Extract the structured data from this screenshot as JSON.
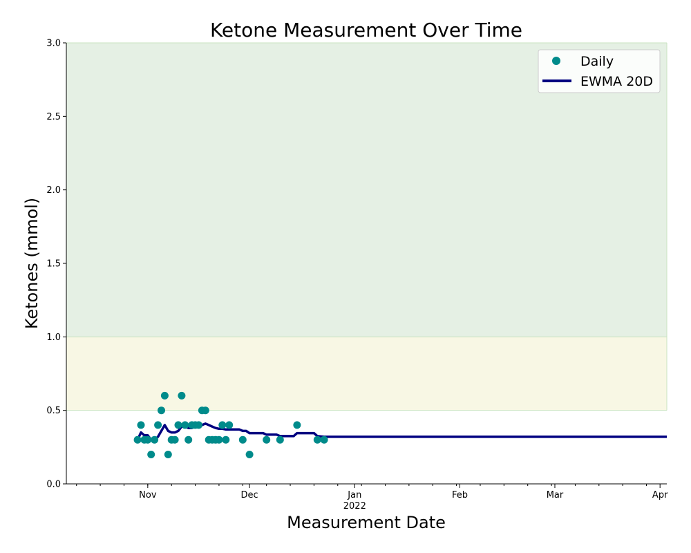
{
  "chart_data": {
    "type": "line",
    "title": "Ketone Measurement Over Time",
    "xlabel": "Measurement Date",
    "ylabel": "Ketones (mmol)",
    "ylim": [
      0.0,
      3.0
    ],
    "xlim": [
      "2021-10-08",
      "2022-04-03"
    ],
    "y_ticks": [
      "0.0",
      "0.5",
      "1.0",
      "1.5",
      "2.0",
      "2.5",
      "3.0"
    ],
    "x_ticks": [
      {
        "date": "2021-11-01",
        "label": "Nov",
        "sublabel": ""
      },
      {
        "date": "2021-12-01",
        "label": "Dec",
        "sublabel": ""
      },
      {
        "date": "2022-01-01",
        "label": "Jan",
        "sublabel": "2022"
      },
      {
        "date": "2022-02-01",
        "label": "Feb",
        "sublabel": ""
      },
      {
        "date": "2022-03-01",
        "label": "Mar",
        "sublabel": ""
      },
      {
        "date": "2022-04-01",
        "label": "Apr",
        "sublabel": ""
      }
    ],
    "bands": [
      {
        "from": 1.0,
        "to": 3.0,
        "color": "#e5f0e4"
      },
      {
        "from": 0.5,
        "to": 1.0,
        "color": "#f8f7e4"
      }
    ],
    "legend": {
      "placement": "top-right",
      "daily_label": "Daily",
      "ewma_label": "EWMA 20D"
    },
    "series": [
      {
        "name": "Daily",
        "kind": "scatter",
        "color": "#008b8b",
        "points": [
          [
            "2021-10-29",
            0.3
          ],
          [
            "2021-10-30",
            0.4
          ],
          [
            "2021-10-31",
            0.3
          ],
          [
            "2021-11-01",
            0.3
          ],
          [
            "2021-11-02",
            0.2
          ],
          [
            "2021-11-03",
            0.3
          ],
          [
            "2021-11-04",
            0.4
          ],
          [
            "2021-11-05",
            0.5
          ],
          [
            "2021-11-06",
            0.6
          ],
          [
            "2021-11-07",
            0.2
          ],
          [
            "2021-11-08",
            0.3
          ],
          [
            "2021-11-09",
            0.3
          ],
          [
            "2021-11-10",
            0.4
          ],
          [
            "2021-11-11",
            0.6
          ],
          [
            "2021-11-12",
            0.4
          ],
          [
            "2021-11-13",
            0.3
          ],
          [
            "2021-11-14",
            0.4
          ],
          [
            "2021-11-15",
            0.4
          ],
          [
            "2021-11-16",
            0.4
          ],
          [
            "2021-11-17",
            0.5
          ],
          [
            "2021-11-18",
            0.5
          ],
          [
            "2021-11-19",
            0.3
          ],
          [
            "2021-11-20",
            0.3
          ],
          [
            "2021-11-21",
            0.3
          ],
          [
            "2021-11-22",
            0.3
          ],
          [
            "2021-11-23",
            0.4
          ],
          [
            "2021-11-24",
            0.3
          ],
          [
            "2021-11-25",
            0.4
          ],
          [
            "2021-11-29",
            0.3
          ],
          [
            "2021-12-01",
            0.2
          ],
          [
            "2021-12-06",
            0.3
          ],
          [
            "2021-12-10",
            0.3
          ],
          [
            "2021-12-15",
            0.4
          ],
          [
            "2021-12-21",
            0.3
          ],
          [
            "2021-12-23",
            0.3
          ]
        ]
      },
      {
        "name": "EWMA 20D",
        "kind": "line",
        "color": "#000080",
        "points": [
          [
            "2021-10-29",
            0.3
          ],
          [
            "2021-10-30",
            0.35
          ],
          [
            "2021-10-31",
            0.33
          ],
          [
            "2021-11-01",
            0.33
          ],
          [
            "2021-11-02",
            0.3
          ],
          [
            "2021-11-03",
            0.3
          ],
          [
            "2021-11-04",
            0.32
          ],
          [
            "2021-11-05",
            0.36
          ],
          [
            "2021-11-06",
            0.4
          ],
          [
            "2021-11-07",
            0.36
          ],
          [
            "2021-11-08",
            0.35
          ],
          [
            "2021-11-09",
            0.35
          ],
          [
            "2021-11-10",
            0.36
          ],
          [
            "2021-11-11",
            0.39
          ],
          [
            "2021-11-12",
            0.39
          ],
          [
            "2021-11-13",
            0.38
          ],
          [
            "2021-11-14",
            0.38
          ],
          [
            "2021-11-15",
            0.39
          ],
          [
            "2021-11-16",
            0.39
          ],
          [
            "2021-11-17",
            0.4
          ],
          [
            "2021-11-18",
            0.41
          ],
          [
            "2021-11-19",
            0.4
          ],
          [
            "2021-11-20",
            0.39
          ],
          [
            "2021-11-21",
            0.38
          ],
          [
            "2021-11-22",
            0.375
          ],
          [
            "2021-11-23",
            0.375
          ],
          [
            "2021-11-24",
            0.37
          ],
          [
            "2021-11-25",
            0.37
          ],
          [
            "2021-11-28",
            0.37
          ],
          [
            "2021-11-29",
            0.36
          ],
          [
            "2021-11-30",
            0.36
          ],
          [
            "2021-12-01",
            0.345
          ],
          [
            "2021-12-05",
            0.345
          ],
          [
            "2021-12-06",
            0.335
          ],
          [
            "2021-12-09",
            0.335
          ],
          [
            "2021-12-10",
            0.325
          ],
          [
            "2021-12-14",
            0.325
          ],
          [
            "2021-12-15",
            0.345
          ],
          [
            "2021-12-20",
            0.345
          ],
          [
            "2021-12-21",
            0.325
          ],
          [
            "2021-12-23",
            0.32
          ],
          [
            "2022-04-03",
            0.32
          ]
        ]
      }
    ]
  }
}
